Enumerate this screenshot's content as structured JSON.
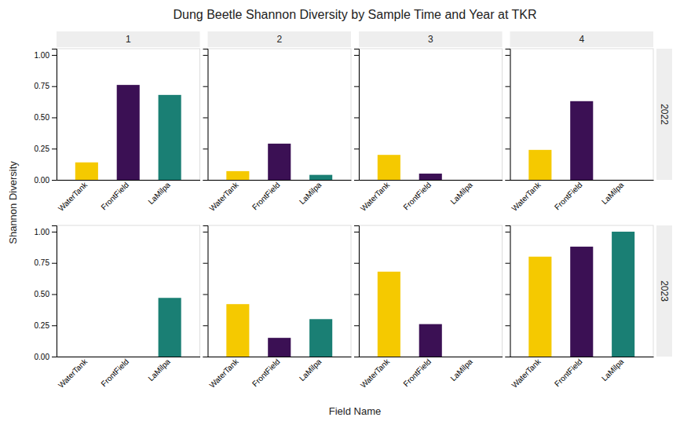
{
  "title": "Dung Beetle Shannon Diversity by Sample Time and Year at TKR",
  "xlabel": "Field Name",
  "ylabel": "Shannon Diversity",
  "column_labels": [
    "1",
    "2",
    "3",
    "4"
  ],
  "row_labels": [
    "2022",
    "2023"
  ],
  "chart_data": [
    {
      "type": "bar",
      "categories": [
        "WaterTank",
        "FrontField",
        "LaMilpa"
      ],
      "values": [
        0.14,
        0.76,
        0.68
      ],
      "colors": [
        "#F5C900",
        "#3B1054",
        "#1A7F74"
      ],
      "ylim": [
        0.0,
        1.05
      ],
      "yticks": [
        {
          "value": 0,
          "label": "0.00"
        },
        {
          "value": 0.25,
          "label": "0.25"
        },
        {
          "value": 0.5,
          "label": "0.50"
        },
        {
          "value": 0.75,
          "label": "0.75"
        },
        {
          "value": 1,
          "label": "1.00"
        }
      ],
      "grid": false
    },
    {
      "type": "bar",
      "categories": [
        "WaterTank",
        "FrontField",
        "LaMilpa"
      ],
      "values": [
        0.07,
        0.29,
        0.04
      ],
      "colors": [
        "#F5C900",
        "#3B1054",
        "#1A7F74"
      ],
      "ylim": [
        0.0,
        1.05
      ],
      "yticks": [
        0,
        0.25,
        0.5,
        0.75,
        1
      ],
      "grid": false,
      "tick_labels": "x"
    },
    {
      "type": "bar",
      "categories": [
        "WaterTank",
        "FrontField",
        "LaMilpa"
      ],
      "values": [
        0.2,
        0.05,
        0
      ],
      "colors": [
        "#F5C900",
        "#3B1054",
        "#1A7F74"
      ],
      "ylim": [
        0.0,
        1.05
      ],
      "yticks": [
        0,
        0.25,
        0.5,
        0.75,
        1
      ],
      "grid": false,
      "tick_labels": "x"
    },
    {
      "type": "bar",
      "categories": [
        "WaterTank",
        "FrontField",
        "LaMilpa"
      ],
      "values": [
        0.24,
        0.63,
        0
      ],
      "colors": [
        "#F5C900",
        "#3B1054",
        "#1A7F74"
      ],
      "ylim": [
        0.0,
        1.05
      ],
      "yticks": [
        0,
        0.25,
        0.5,
        0.75,
        1
      ],
      "grid": false,
      "tick_labels": "x"
    },
    {
      "type": "bar",
      "categories": [
        "WaterTank",
        "FrontField",
        "LaMilpa"
      ],
      "values": [
        0,
        0,
        0.47
      ],
      "colors": [
        "#F5C900",
        "#3B1054",
        "#1A7F74"
      ],
      "ylim": [
        0.0,
        1.05
      ],
      "yticks": [
        {
          "value": 0,
          "label": "0.00"
        },
        {
          "value": 0.25,
          "label": "0.25"
        },
        {
          "value": 0.5,
          "label": "0.50"
        },
        {
          "value": 0.75,
          "label": "0.75"
        },
        {
          "value": 1,
          "label": "1.00"
        }
      ],
      "grid": false
    },
    {
      "type": "bar",
      "categories": [
        "WaterTank",
        "FrontField",
        "LaMilpa"
      ],
      "values": [
        0.42,
        0.15,
        0.3
      ],
      "colors": [
        "#F5C900",
        "#3B1054",
        "#1A7F74"
      ],
      "ylim": [
        0.0,
        1.05
      ],
      "yticks": [
        0,
        0.25,
        0.5,
        0.75,
        1
      ],
      "grid": false,
      "tick_labels": "x"
    },
    {
      "type": "bar",
      "categories": [
        "WaterTank",
        "FrontField",
        "LaMilpa"
      ],
      "values": [
        0.68,
        0.26,
        0
      ],
      "colors": [
        "#F5C900",
        "#3B1054",
        "#1A7F74"
      ],
      "ylim": [
        0.0,
        1.05
      ],
      "yticks": [
        0,
        0.25,
        0.5,
        0.75,
        1
      ],
      "grid": false,
      "tick_labels": "x"
    },
    {
      "type": "bar",
      "categories": [
        "WaterTank",
        "FrontField",
        "LaMilpa"
      ],
      "values": [
        0.8,
        0.88,
        1.0
      ],
      "colors": [
        "#F5C900",
        "#3B1054",
        "#1A7F74"
      ],
      "ylim": [
        0.0,
        1.05
      ],
      "yticks": [
        0,
        0.25,
        0.5,
        0.75,
        1
      ],
      "grid": false,
      "tick_labels": "x"
    }
  ]
}
